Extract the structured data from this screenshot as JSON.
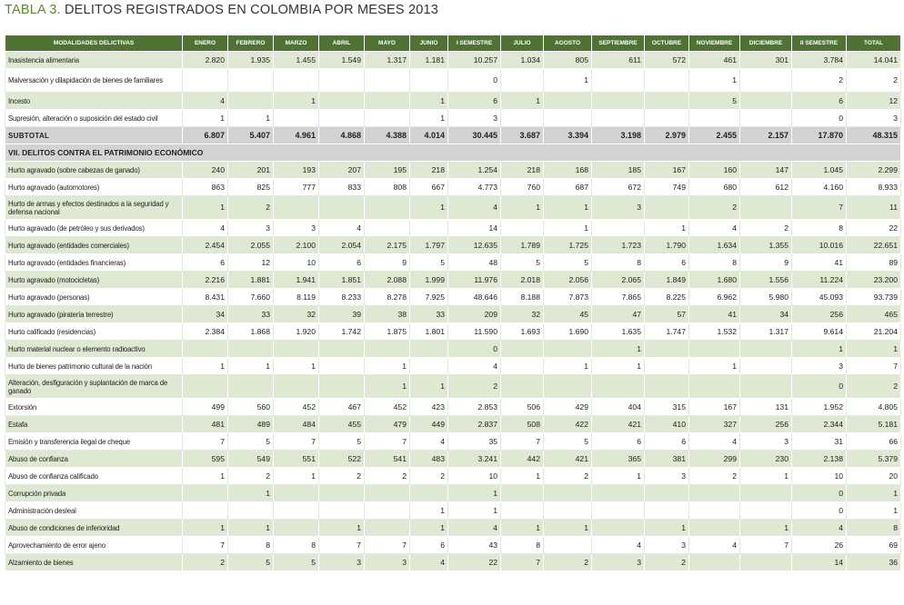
{
  "title": {
    "label": "TABLA 3.",
    "text": "DELITOS REGISTRADOS EN COLOMBIA POR MESES 2013"
  },
  "table": {
    "header": [
      "MODALIDADES DELICTIVAS",
      "ENERO",
      "FEBRERO",
      "MARZO",
      "ABRIL",
      "MAYO",
      "JUNIO",
      "I SEMESTRE",
      "JULIO",
      "AGOSTO",
      "SEPTIEMBRE",
      "OCTUBRE",
      "NOVIEMBRE",
      "DICIEMBRE",
      "II SEMESTRE",
      "TOTAL"
    ],
    "group1": [
      [
        "Inasistencia alimentaria",
        "2.820",
        "1.935",
        "1.455",
        "1.549",
        "1.317",
        "1.181",
        "10.257",
        "1.034",
        "805",
        "611",
        "572",
        "461",
        "301",
        "3.784",
        "14.041"
      ],
      [
        "Malversación y dilapidación de bienes de familiares",
        null,
        null,
        null,
        null,
        null,
        null,
        "0",
        null,
        "1",
        null,
        null,
        "1",
        null,
        "2",
        "2"
      ],
      [
        "Incesto",
        "4",
        null,
        "1",
        null,
        null,
        "1",
        "6",
        "1",
        null,
        null,
        null,
        "5",
        null,
        "6",
        "12"
      ],
      [
        "Supresión, alteración o suposición del estado civil",
        "1",
        "1",
        null,
        null,
        null,
        "1",
        "3",
        null,
        null,
        null,
        null,
        null,
        null,
        "0",
        "3"
      ]
    ],
    "subtotal": [
      "SUBTOTAL",
      "6.807",
      "5.407",
      "4.961",
      "4.868",
      "4.388",
      "4.014",
      "30.445",
      "3.687",
      "3.394",
      "3.198",
      "2.979",
      "2.455",
      "2.157",
      "17.870",
      "48.315"
    ],
    "section": "VII. DELITOS CONTRA EL PATRIMONIO ECONÓMICO",
    "group2": [
      [
        "Hurto agravado (sobre cabezas de ganado)",
        "240",
        "201",
        "193",
        "207",
        "195",
        "218",
        "1.254",
        "218",
        "168",
        "185",
        "167",
        "160",
        "147",
        "1.045",
        "2.299"
      ],
      [
        "Hurto agravado (automotores)",
        "863",
        "825",
        "777",
        "833",
        "808",
        "667",
        "4.773",
        "760",
        "687",
        "672",
        "749",
        "680",
        "612",
        "4.160",
        "8.933"
      ],
      [
        "Hurto de armas y efectos destinados a la seguridad y defensa nacional",
        "1",
        "2",
        null,
        null,
        null,
        "1",
        "4",
        "1",
        "1",
        "3",
        null,
        "2",
        null,
        "7",
        "11"
      ],
      [
        "Hurto agravado (de petróleo y sus derivados)",
        "4",
        "3",
        "3",
        "4",
        null,
        null,
        "14",
        null,
        "1",
        null,
        "1",
        "4",
        "2",
        "8",
        "22"
      ],
      [
        "Hurto agravado (entidades comerciales)",
        "2.454",
        "2.055",
        "2.100",
        "2.054",
        "2.175",
        "1.797",
        "12.635",
        "1.789",
        "1.725",
        "1.723",
        "1.790",
        "1.634",
        "1.355",
        "10.016",
        "22.651"
      ],
      [
        "Hurto agravado (entidades financieras)",
        "6",
        "12",
        "10",
        "6",
        "9",
        "5",
        "48",
        "5",
        "5",
        "8",
        "6",
        "8",
        "9",
        "41",
        "89"
      ],
      [
        "Hurto agravado (motocicletas)",
        "2.216",
        "1.881",
        "1.941",
        "1.851",
        "2.088",
        "1.999",
        "11.976",
        "2.018",
        "2.056",
        "2.065",
        "1.849",
        "1.680",
        "1.556",
        "11.224",
        "23.200"
      ],
      [
        "Hurto agravado (personas)",
        "8.431",
        "7.660",
        "8.119",
        "8.233",
        "8.278",
        "7.925",
        "48.646",
        "8.188",
        "7.873",
        "7.865",
        "8.225",
        "6.962",
        "5.980",
        "45.093",
        "93.739"
      ],
      [
        "Hurto agravado (piratería terrestre)",
        "34",
        "33",
        "32",
        "39",
        "38",
        "33",
        "209",
        "32",
        "45",
        "47",
        "57",
        "41",
        "34",
        "256",
        "465"
      ],
      [
        "Hurto calificado (residencias)",
        "2.384",
        "1.868",
        "1.920",
        "1.742",
        "1.875",
        "1.801",
        "11.590",
        "1.693",
        "1.690",
        "1.635",
        "1.747",
        "1.532",
        "1.317",
        "9.614",
        "21.204"
      ],
      [
        "Hurto material nuclear o elemento radioactivo",
        null,
        null,
        null,
        null,
        null,
        null,
        "0",
        null,
        null,
        "1",
        null,
        null,
        null,
        "1",
        "1"
      ],
      [
        "Hurto de bienes patrimonio cultural de la nación",
        "1",
        "1",
        "1",
        null,
        "1",
        null,
        "4",
        null,
        "1",
        "1",
        null,
        "1",
        null,
        "3",
        "7"
      ],
      [
        "Alteración, desfiguración y suplantación de marca de ganado",
        null,
        null,
        null,
        null,
        "1",
        "1",
        "2",
        null,
        null,
        null,
        null,
        null,
        null,
        "0",
        "2"
      ],
      [
        "Extorsión",
        "499",
        "560",
        "452",
        "467",
        "452",
        "423",
        "2.853",
        "506",
        "429",
        "404",
        "315",
        "167",
        "131",
        "1.952",
        "4.805"
      ],
      [
        "Estafa",
        "481",
        "489",
        "484",
        "455",
        "479",
        "449",
        "2.837",
        "508",
        "422",
        "421",
        "410",
        "327",
        "256",
        "2.344",
        "5.181"
      ],
      [
        "Emisión y transferencia ilegal de cheque",
        "7",
        "5",
        "7",
        "5",
        "7",
        "4",
        "35",
        "7",
        "5",
        "6",
        "6",
        "4",
        "3",
        "31",
        "66"
      ],
      [
        "Abuso de confianza",
        "595",
        "549",
        "551",
        "522",
        "541",
        "483",
        "3.241",
        "442",
        "421",
        "365",
        "381",
        "299",
        "230",
        "2.138",
        "5.379"
      ],
      [
        "Abuso de confianza calificado",
        "1",
        "2",
        "1",
        "2",
        "2",
        "2",
        "10",
        "1",
        "2",
        "1",
        "3",
        "2",
        "1",
        "10",
        "20"
      ],
      [
        "Corrupción privada",
        null,
        "1",
        null,
        null,
        null,
        null,
        "1",
        null,
        null,
        null,
        null,
        null,
        null,
        "0",
        "1"
      ],
      [
        "Administración desleal",
        null,
        null,
        null,
        null,
        null,
        "1",
        "1",
        null,
        null,
        null,
        null,
        null,
        null,
        "0",
        "1"
      ],
      [
        "Abuso de condiciones de inferioridad",
        "1",
        "1",
        null,
        "1",
        null,
        "1",
        "4",
        "1",
        "1",
        null,
        "1",
        null,
        "1",
        "4",
        "8"
      ],
      [
        "Aprovechamiento de error ajeno",
        "7",
        "8",
        "8",
        "7",
        "7",
        "6",
        "43",
        "8",
        null,
        "4",
        "3",
        "4",
        "7",
        "26",
        "69"
      ],
      [
        "Alzamiento de bienes",
        "2",
        "5",
        "5",
        "3",
        "3",
        "4",
        "22",
        "7",
        "2",
        "3",
        "2",
        null,
        null,
        "14",
        "36"
      ]
    ]
  }
}
